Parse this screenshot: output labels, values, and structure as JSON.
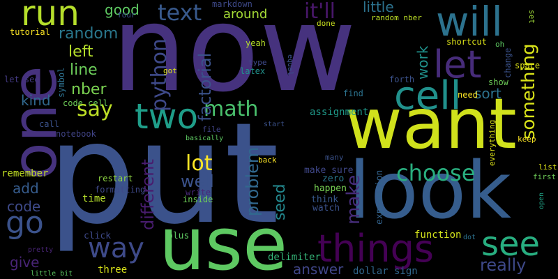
{
  "words": [
    {
      "text": "now",
      "color": "#46327e"
    },
    {
      "text": "put",
      "color": "#3b528b"
    },
    {
      "text": "want",
      "color": "#d0e11c"
    },
    {
      "text": "look",
      "color": "#365d8d"
    },
    {
      "text": "use",
      "color": "#5ec962"
    },
    {
      "text": "one",
      "color": "#46327e"
    },
    {
      "text": "will",
      "color": "#2c728e"
    },
    {
      "text": "run",
      "color": "#b5de2b"
    },
    {
      "text": "let",
      "color": "#472c7a"
    },
    {
      "text": "cell",
      "color": "#21918c"
    },
    {
      "text": "two",
      "color": "#1f9e89"
    },
    {
      "text": "things",
      "color": "#440154"
    },
    {
      "text": "way",
      "color": "#3e4a89"
    },
    {
      "text": "see",
      "color": "#28ae80"
    },
    {
      "text": "choose",
      "color": "#29af7f"
    },
    {
      "text": "math",
      "color": "#4ac16d"
    },
    {
      "text": "go",
      "color": "#3b528b"
    },
    {
      "text": "python",
      "color": "#3e4989"
    },
    {
      "text": "factorial",
      "color": "#3b528b"
    },
    {
      "text": "say",
      "color": "#bddf26"
    },
    {
      "text": "lot",
      "color": "#fde725"
    },
    {
      "text": "text",
      "color": "#38598c"
    },
    {
      "text": "it'll",
      "color": "#481769"
    },
    {
      "text": "something",
      "color": "#d8e219"
    },
    {
      "text": "really",
      "color": "#3e4989"
    },
    {
      "text": "make",
      "color": "#472d7b"
    },
    {
      "text": "problem",
      "color": "#31688e"
    },
    {
      "text": "different",
      "color": "#481c6e"
    },
    {
      "text": "well",
      "color": "#3b528b"
    },
    {
      "text": "code",
      "color": "#3e4a89"
    },
    {
      "text": "seed",
      "color": "#23888e"
    },
    {
      "text": "random",
      "color": "#2a788e"
    },
    {
      "text": "line",
      "color": "#6ccd5a"
    },
    {
      "text": "nber",
      "color": "#7ad151"
    },
    {
      "text": "sort",
      "color": "#2c728e"
    },
    {
      "text": "work",
      "color": "#20928c"
    },
    {
      "text": "left",
      "color": "#b5de2b"
    },
    {
      "text": "good",
      "color": "#5ec962"
    },
    {
      "text": "little",
      "color": "#2c728e"
    },
    {
      "text": "around",
      "color": "#a5db36"
    },
    {
      "text": "kind",
      "color": "#31688e"
    },
    {
      "text": "add",
      "color": "#365c8d"
    },
    {
      "text": "give",
      "color": "#482475"
    },
    {
      "text": "answer",
      "color": "#404688"
    },
    {
      "text": "time",
      "color": "#b5de2b"
    },
    {
      "text": "remember",
      "color": "#c2df23"
    },
    {
      "text": "assignment",
      "color": "#1f9a8a"
    },
    {
      "text": "dollar sign",
      "color": "#31688e"
    },
    {
      "text": "delimiter",
      "color": "#35b779"
    },
    {
      "text": "function",
      "color": "#d2e21b"
    },
    {
      "text": "expression",
      "color": "#33638d"
    },
    {
      "text": "make sure",
      "color": "#3f4788"
    },
    {
      "text": "happen",
      "color": "#77d153"
    },
    {
      "text": "zero",
      "color": "#2a788e"
    },
    {
      "text": "think",
      "color": "#38598c"
    },
    {
      "text": "watch",
      "color": "#3b528b"
    },
    {
      "text": "three",
      "color": "#d8e219"
    },
    {
      "text": "plus",
      "color": "#5ec962"
    },
    {
      "text": "click",
      "color": "#3e4989"
    },
    {
      "text": "inside",
      "color": "#6ece58"
    },
    {
      "text": "write",
      "color": "#482878"
    },
    {
      "text": "formatting",
      "color": "#3e4989"
    },
    {
      "text": "restart",
      "color": "#90d743"
    },
    {
      "text": "notebook",
      "color": "#414487"
    },
    {
      "text": "call",
      "color": "#3b528b"
    },
    {
      "text": "code cell",
      "color": "#6ece58"
    },
    {
      "text": "symbol",
      "color": "#2d708e"
    },
    {
      "text": "let see",
      "color": "#443a83"
    },
    {
      "text": "tutorial",
      "color": "#fde725"
    },
    {
      "text": "four",
      "color": "#3b528b"
    },
    {
      "text": "markdown",
      "color": "#3e4989"
    },
    {
      "text": "random nber",
      "color": "#bddf26"
    },
    {
      "text": "done",
      "color": "#cae11f"
    },
    {
      "text": "set",
      "color": "#a0da39"
    },
    {
      "text": "shortcut",
      "color": "#dde318"
    },
    {
      "text": "oh",
      "color": "#5ec962"
    },
    {
      "text": "space",
      "color": "#dde318"
    },
    {
      "text": "change",
      "color": "#3b528b"
    },
    {
      "text": "show",
      "color": "#6ece58"
    },
    {
      "text": "forth",
      "color": "#3b528b"
    },
    {
      "text": "find",
      "color": "#2c728e"
    },
    {
      "text": "need",
      "color": "#fde725"
    },
    {
      "text": "yeah",
      "color": "#b5de2b"
    },
    {
      "text": "type",
      "color": "#3e4989"
    },
    {
      "text": "latex",
      "color": "#21918c"
    },
    {
      "text": "equal",
      "color": "#3b528b"
    },
    {
      "text": "got",
      "color": "#dde318"
    },
    {
      "text": "start",
      "color": "#3b528b"
    },
    {
      "text": "basically",
      "color": "#5ec962"
    },
    {
      "text": "file",
      "color": "#414487"
    },
    {
      "text": "back",
      "color": "#fde725"
    },
    {
      "text": "many",
      "color": "#3b528b"
    },
    {
      "text": "everything",
      "color": "#dde318"
    },
    {
      "text": "keep",
      "color": "#fde725"
    },
    {
      "text": "list",
      "color": "#dde318"
    },
    {
      "text": "first",
      "color": "#6ece58"
    },
    {
      "text": "open",
      "color": "#20a386"
    },
    {
      "text": "dot",
      "color": "#2c728e"
    },
    {
      "text": "pretty",
      "color": "#482475"
    },
    {
      "text": "little bit",
      "color": "#5ec962"
    }
  ]
}
